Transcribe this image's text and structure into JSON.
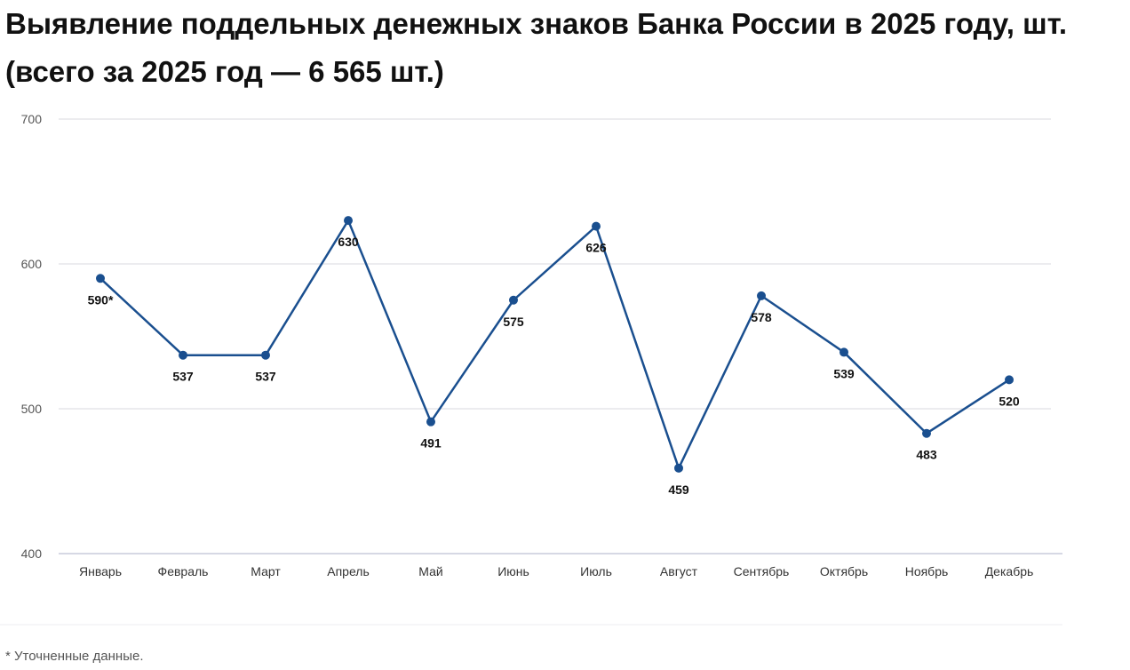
{
  "title": "Выявление поддельных денежных знаков Банка России в 2025 году, шт. (всего за 2025 год — 6 565 шт.)",
  "footnote": "* Уточненные данные.",
  "colors": {
    "line": "#1a4f8f",
    "grid": "#e6e6ea",
    "axis": "#c9ccdb"
  },
  "chart_data": {
    "type": "line",
    "title": "Выявление поддельных денежных знаков Банка России в 2025 году, шт. (всего за 2025 год — 6 565 шт.)",
    "xlabel": "",
    "ylabel": "",
    "ylim": [
      400,
      700
    ],
    "yticks": [
      400,
      500,
      600,
      700
    ],
    "grid": true,
    "legend": "none",
    "categories": [
      "Январь",
      "Февраль",
      "Март",
      "Апрель",
      "Май",
      "Июнь",
      "Июль",
      "Август",
      "Сентябрь",
      "Октябрь",
      "Ноябрь",
      "Декабрь"
    ],
    "series": [
      {
        "values": [
          590,
          537,
          537,
          630,
          491,
          575,
          626,
          459,
          578,
          539,
          483,
          520
        ],
        "labels": [
          "590*",
          "537",
          "537",
          "630",
          "491",
          "575",
          "626",
          "459",
          "578",
          "539",
          "483",
          "520"
        ],
        "label_positions": [
          "below",
          "below",
          "below",
          "below",
          "below",
          "below",
          "below",
          "below",
          "below",
          "below",
          "below",
          "below"
        ]
      }
    ]
  }
}
